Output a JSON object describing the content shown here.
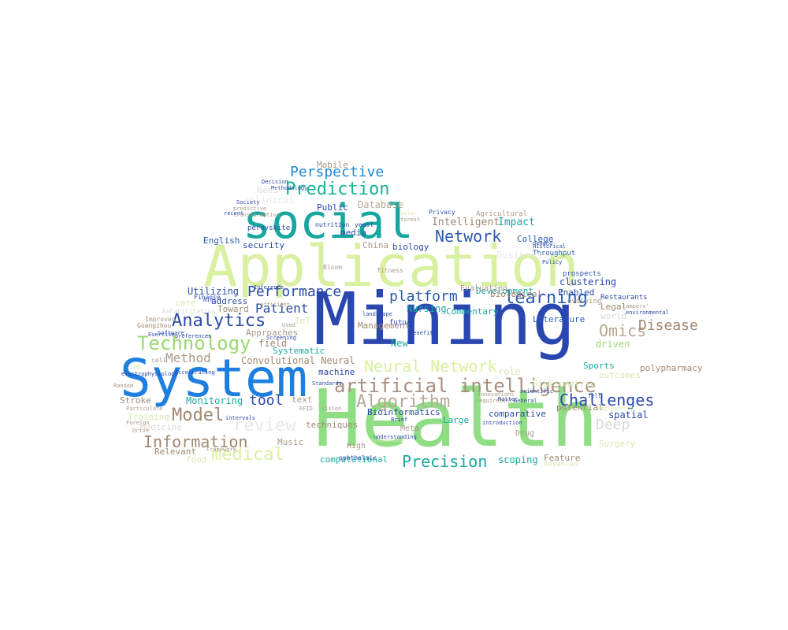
{
  "words": [
    {
      "text": "Mining",
      "color": "#2a47b0"
    },
    {
      "text": "Health",
      "color": "#8fde84"
    },
    {
      "text": "System",
      "color": "#1d7fe0"
    },
    {
      "text": "Application",
      "color": "#d8f0a0"
    },
    {
      "text": "social",
      "color": "#16a8a0"
    },
    {
      "text": "Prediction",
      "color": "#18b490"
    },
    {
      "text": "Perspective",
      "color": "#1d86d8"
    },
    {
      "text": "Network",
      "color": "#2a5ab0"
    },
    {
      "text": "learning",
      "color": "#2a5ab0"
    },
    {
      "text": "Analytics",
      "color": "#2a4aa8"
    },
    {
      "text": "Technology",
      "color": "#9bd870"
    },
    {
      "text": "artificial intelligence",
      "color": "#a89080"
    },
    {
      "text": "Neural Network",
      "color": "#d8f0a0"
    },
    {
      "text": "Algorithm",
      "color": "#b8a898"
    },
    {
      "text": "Challenges",
      "color": "#2a4aa8"
    },
    {
      "text": "Model",
      "color": "#a08870"
    },
    {
      "text": "Information",
      "color": "#a08870"
    },
    {
      "text": "medical",
      "color": "#d8f0a0"
    },
    {
      "text": "Precision",
      "color": "#18a8a0"
    },
    {
      "text": "review",
      "color": "#e8e8e8"
    },
    {
      "text": "Performance",
      "color": "#2a4aa8"
    },
    {
      "text": "platform",
      "color": "#2a5ab0"
    },
    {
      "text": "Omics",
      "color": "#b8a890"
    },
    {
      "text": "Disease",
      "color": "#a08870"
    },
    {
      "text": "Patient",
      "color": "#2a4aa8"
    },
    {
      "text": "Method",
      "color": "#a89888"
    },
    {
      "text": "tool",
      "color": "#2a4aa8"
    },
    {
      "text": "Deep",
      "color": "#d8d8d8"
    },
    {
      "text": "Intelligent",
      "color": "#a08870"
    },
    {
      "text": "Impact",
      "color": "#18a8a0"
    },
    {
      "text": "College",
      "color": "#2a5ab0"
    },
    {
      "text": "Public",
      "color": "#2a4aa8"
    },
    {
      "text": "Database",
      "color": "#b8a898"
    },
    {
      "text": "clinical",
      "color": "#e8e8e8"
    },
    {
      "text": "media",
      "color": "#2a4aa8"
    },
    {
      "text": "security",
      "color": "#2a4aa8"
    },
    {
      "text": "biology",
      "color": "#2a4aa8"
    },
    {
      "text": "China",
      "color": "#a89888"
    },
    {
      "text": "English",
      "color": "#2a5ab0"
    },
    {
      "text": "Utilizing",
      "color": "#2a4aa8"
    },
    {
      "text": "address",
      "color": "#2a4aa8"
    },
    {
      "text": "Toward",
      "color": "#a08870"
    },
    {
      "text": "care",
      "color": "#d8e8b0"
    },
    {
      "text": "Approaches",
      "color": "#a89888"
    },
    {
      "text": "field",
      "color": "#a08870"
    },
    {
      "text": "Systematic",
      "color": "#18a8a0"
    },
    {
      "text": "Convolutional Neural",
      "color": "#a08870"
    },
    {
      "text": "machine",
      "color": "#2a4aa8"
    },
    {
      "text": "New",
      "color": "#18a8a0"
    },
    {
      "text": "Nursing",
      "color": "#18a8a0"
    },
    {
      "text": "Management",
      "color": "#a08870"
    },
    {
      "text": "Monitoring",
      "color": "#18a8a0"
    },
    {
      "text": "Stroke",
      "color": "#a08870"
    },
    {
      "text": "Training",
      "color": "#d8e8b0"
    },
    {
      "text": "medicine",
      "color": "#d8d8d8"
    },
    {
      "text": "Relevant",
      "color": "#a08870"
    },
    {
      "text": "food",
      "color": "#d8e8b0"
    },
    {
      "text": "Music",
      "color": "#a89888"
    },
    {
      "text": "text",
      "color": "#a89888"
    },
    {
      "text": "Bioinformatics",
      "color": "#2a4aa8"
    },
    {
      "text": "computational",
      "color": "#18a8a0"
    },
    {
      "text": "scoping",
      "color": "#18a8a0"
    },
    {
      "text": "Feature",
      "color": "#a08870"
    },
    {
      "text": "Surgery",
      "color": "#d8e8b0"
    },
    {
      "text": "clustering",
      "color": "#2a4aa8"
    },
    {
      "text": "Enabled",
      "color": "#2a4aa8"
    },
    {
      "text": "Legal",
      "color": "#a08870"
    },
    {
      "text": "world",
      "color": "#d8d8d8"
    },
    {
      "text": "driven",
      "color": "#9bd870"
    },
    {
      "text": "Sports",
      "color": "#18a8a0"
    },
    {
      "text": "outcomes",
      "color": "#d8e8b0"
    },
    {
      "text": "polypharmacy",
      "color": "#a08870"
    },
    {
      "text": "spatial",
      "color": "#2a4aa8"
    },
    {
      "text": "Development",
      "color": "#18a8a0"
    },
    {
      "text": "biological",
      "color": "#a08870"
    },
    {
      "text": "Literature",
      "color": "#2a5ab0"
    },
    {
      "text": "Commentary",
      "color": "#18a8a0"
    },
    {
      "text": "Bibliometric",
      "color": "#d8e8b0"
    },
    {
      "text": "comparative",
      "color": "#2a4aa8"
    },
    {
      "text": "potential",
      "color": "#a08870"
    },
    {
      "text": "Large",
      "color": "#18a8a0"
    },
    {
      "text": "techniques",
      "color": "#a08870"
    },
    {
      "text": "Mobile",
      "color": "#a89888"
    },
    {
      "text": "Evaluation",
      "color": "#a89888"
    },
    {
      "text": "role",
      "color": "#d8e8b0"
    },
    {
      "text": "IoT",
      "color": "#d8e8b0"
    },
    {
      "text": "Meta",
      "color": "#a89888"
    },
    {
      "text": "High",
      "color": "#a89888"
    },
    {
      "text": "Drug",
      "color": "#a89888"
    },
    {
      "text": "Advanced",
      "color": "#d8e8b0"
    },
    {
      "text": "Agricultural",
      "color": "#a89888"
    },
    {
      "text": "Throughput",
      "color": "#2a5ab0"
    },
    {
      "text": "Privacy",
      "color": "#2a5ab0"
    },
    {
      "text": "Restaurants",
      "color": "#2a4aa8"
    },
    {
      "text": "prospects",
      "color": "#2a5ab0"
    },
    {
      "text": "evolving",
      "color": "#a89888"
    },
    {
      "text": "perovskite",
      "color": "#2a4aa8"
    },
    {
      "text": "nutrition",
      "color": "#2a4aa8"
    },
    {
      "text": "yeast",
      "color": "#2a4aa8"
    },
    {
      "text": "Bloom",
      "color": "#a89888"
    },
    {
      "text": "Finance",
      "color": "#2a4aa8"
    },
    {
      "text": "Inference",
      "color": "#2a4aa8"
    },
    {
      "text": "future",
      "color": "#2a4aa8"
    },
    {
      "text": "landscape",
      "color": "#2a4aa8"
    },
    {
      "text": "fitness",
      "color": "#a89888"
    },
    {
      "text": "Improved",
      "color": "#a89888"
    },
    {
      "text": "Rehabilitation",
      "color": "#d8d8d8"
    },
    {
      "text": "Guangzhou",
      "color": "#a08870"
    },
    {
      "text": "preferences",
      "color": "#2a4aa8"
    },
    {
      "text": "Exercise",
      "color": "#2a4aa8"
    },
    {
      "text": "cell",
      "color": "#a89888"
    },
    {
      "text": "job",
      "color": "#d8e8b0"
    },
    {
      "text": "electrophysiology",
      "color": "#2a4aa8"
    },
    {
      "text": "Random",
      "color": "#a89888"
    },
    {
      "text": "Particulate",
      "color": "#a89888"
    },
    {
      "text": "Foreign",
      "color": "#a89888"
    },
    {
      "text": "Drive",
      "color": "#a89888"
    },
    {
      "text": "Accelerating",
      "color": "#2a4aa8"
    },
    {
      "text": "intervals",
      "color": "#2a4aa8"
    },
    {
      "text": "RFID",
      "color": "#a89888"
    },
    {
      "text": "Vision",
      "color": "#a89888"
    },
    {
      "text": "Standards",
      "color": "#2a4aa8"
    },
    {
      "text": "understanding",
      "color": "#2a4aa8"
    },
    {
      "text": "ophthalmic",
      "color": "#2a4aa8"
    },
    {
      "text": "Brief",
      "color": "#2a4aa8"
    },
    {
      "text": "benefits",
      "color": "#2a4aa8"
    },
    {
      "text": "diagnosing",
      "color": "#d8e8b0"
    },
    {
      "text": "introduction",
      "color": "#2a4aa8"
    },
    {
      "text": "requirements",
      "color": "#a89888"
    },
    {
      "text": "Matter",
      "color": "#2a4aa8"
    },
    {
      "text": "General",
      "color": "#2a4aa8"
    },
    {
      "text": "scientific",
      "color": "#2a4aa8"
    },
    {
      "text": "innovations",
      "color": "#a89888"
    },
    {
      "text": "Decision",
      "color": "#2a4aa8"
    },
    {
      "text": "Methodology",
      "color": "#2a4aa8"
    },
    {
      "text": "Society",
      "color": "#2a4aa8"
    },
    {
      "text": "predictive",
      "color": "#a89888"
    },
    {
      "text": "transformative",
      "color": "#a89888"
    },
    {
      "text": "recent",
      "color": "#2a4aa8"
    },
    {
      "text": "Need",
      "color": "#e0e0e0"
    },
    {
      "text": "solar",
      "color": "#d8e8b0"
    },
    {
      "text": "forest",
      "color": "#a89888"
    },
    {
      "text": "demand",
      "color": "#2a4aa8"
    },
    {
      "text": "Historical",
      "color": "#2a4aa8"
    },
    {
      "text": "Policy",
      "color": "#2a4aa8"
    },
    {
      "text": "environmental",
      "color": "#2a4aa8"
    },
    {
      "text": "campers'",
      "color": "#a89888"
    },
    {
      "text": "Screening",
      "color": "#2a4aa8"
    },
    {
      "text": "Used",
      "color": "#a89888"
    },
    {
      "text": "efficient",
      "color": "#a89888"
    },
    {
      "text": "Software",
      "color": "#2a4aa8"
    },
    {
      "text": "Framework",
      "color": "#a89888"
    },
    {
      "text": "mini",
      "color": "#2a4aa8"
    },
    {
      "text": "Tell",
      "color": "#2a4aa8"
    },
    {
      "text": "Engineering",
      "color": "#d8e8b0"
    },
    {
      "text": "Business",
      "color": "#e8e8e8"
    }
  ]
}
